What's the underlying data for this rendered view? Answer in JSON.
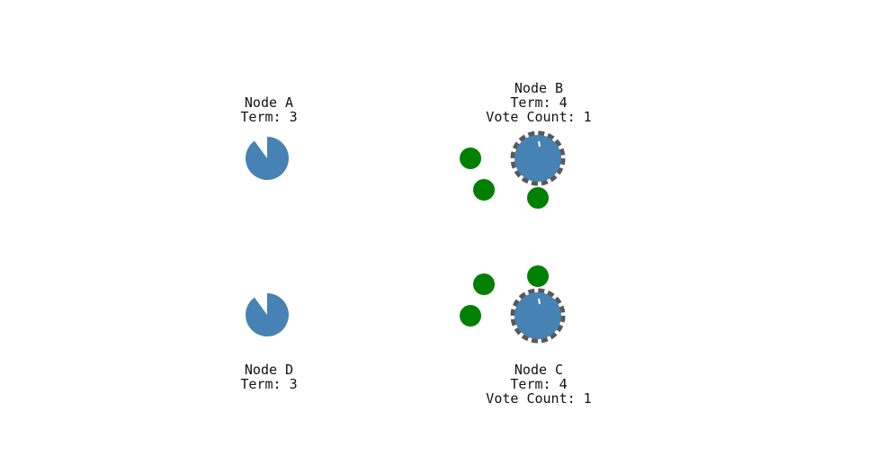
{
  "colors": {
    "node_fill": "#4682b4",
    "vote_fill": "#008000",
    "leader_ring": "#222222",
    "text": "#111111",
    "background": "#ffffff"
  },
  "nodes": [
    {
      "id": "a",
      "name": "Node A",
      "term": "Term: 3",
      "vote_count": "",
      "leader": false,
      "timeout_remaining": 0.9
    },
    {
      "id": "b",
      "name": "Node B",
      "term": "Term: 4",
      "vote_count": "Vote Count: 1",
      "leader": true,
      "timeout_remaining": 1.0
    },
    {
      "id": "c",
      "name": "Node C",
      "term": "Term: 4",
      "vote_count": "Vote Count: 1",
      "leader": true,
      "timeout_remaining": 1.0
    },
    {
      "id": "d",
      "name": "Node D",
      "term": "Term: 3",
      "vote_count": "",
      "leader": false,
      "timeout_remaining": 0.9
    }
  ],
  "messages": [
    {
      "name": "vote-message-b-1",
      "type": "vote"
    },
    {
      "name": "vote-message-b-2",
      "type": "vote"
    },
    {
      "name": "vote-message-b-3",
      "type": "vote"
    },
    {
      "name": "vote-message-c-1",
      "type": "vote"
    },
    {
      "name": "vote-message-c-2",
      "type": "vote"
    },
    {
      "name": "vote-message-c-3",
      "type": "vote"
    }
  ]
}
